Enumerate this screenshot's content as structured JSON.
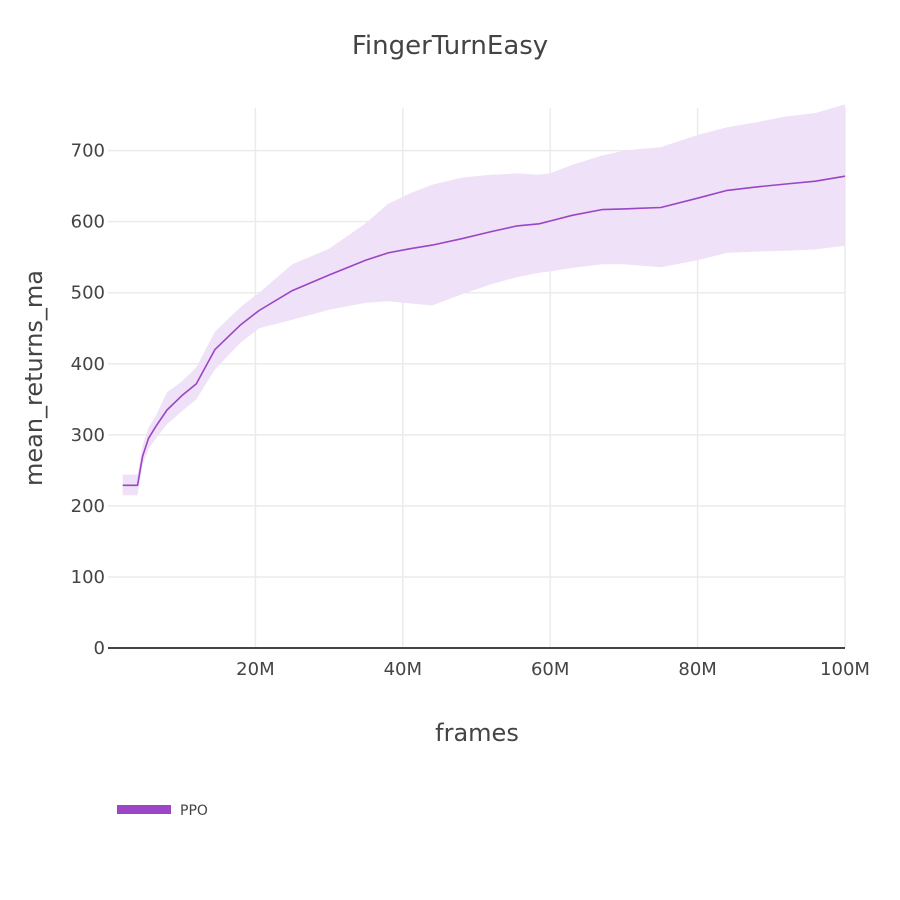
{
  "chart_data": {
    "type": "line",
    "title": "FingerTurnEasy",
    "xlabel": "frames",
    "ylabel": "mean_returns_ma",
    "xlim": [
      0,
      100000000
    ],
    "ylim": [
      0,
      760
    ],
    "x_ticks": [
      {
        "value": 20000000,
        "label": "20M"
      },
      {
        "value": 40000000,
        "label": "40M"
      },
      {
        "value": 60000000,
        "label": "60M"
      },
      {
        "value": 80000000,
        "label": "80M"
      },
      {
        "value": 100000000,
        "label": "100M"
      }
    ],
    "y_ticks": [
      {
        "value": 0,
        "label": "0"
      },
      {
        "value": 100,
        "label": "100"
      },
      {
        "value": 200,
        "label": "200"
      },
      {
        "value": 300,
        "label": "300"
      },
      {
        "value": 400,
        "label": "400"
      },
      {
        "value": 500,
        "label": "500"
      },
      {
        "value": 600,
        "label": "600"
      },
      {
        "value": 700,
        "label": "700"
      }
    ],
    "grid": true,
    "legend_position": "bottom-left",
    "series": [
      {
        "name": "PPO",
        "color": "#9b45c7",
        "band_color": "#efe1f7",
        "x": [
          2000000,
          4000000,
          4700000,
          5500000,
          6500000,
          8000000,
          10000000,
          12000000,
          14500000,
          18000000,
          20500000,
          25000000,
          30000000,
          35000000,
          38000000,
          41000000,
          44000000,
          48000000,
          52000000,
          55500000,
          58500000,
          60000000,
          63000000,
          67000000,
          70000000,
          75000000,
          80000000,
          84000000,
          88000000,
          92000000,
          96000000,
          100000000
        ],
        "mean": [
          229,
          229,
          270,
          295,
          312,
          335,
          355,
          372,
          420,
          455,
          475,
          503,
          525,
          546,
          556,
          562,
          567,
          576,
          586,
          594,
          597,
          601,
          609,
          617,
          618,
          620,
          633,
          644,
          649,
          653,
          657,
          664
        ],
        "upper": [
          244,
          244,
          285,
          310,
          327,
          360,
          375,
          395,
          445,
          480,
          500,
          540,
          562,
          598,
          625,
          640,
          652,
          662,
          666,
          668,
          666,
          668,
          680,
          693,
          700,
          705,
          722,
          733,
          740,
          748,
          753,
          765
        ],
        "lower": [
          215,
          215,
          258,
          280,
          295,
          315,
          333,
          350,
          392,
          430,
          450,
          462,
          476,
          486,
          488,
          485,
          482,
          498,
          512,
          522,
          528,
          530,
          535,
          540,
          540,
          536,
          546,
          556,
          558,
          559,
          561,
          566
        ]
      }
    ]
  }
}
